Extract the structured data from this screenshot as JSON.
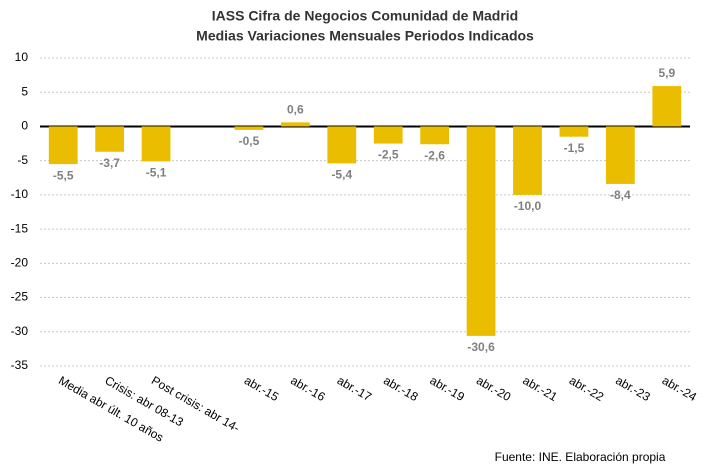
{
  "chart_data": {
    "type": "bar",
    "title": [
      "IASS Cifra de Negocios Comunidad de Madrid",
      "Medias Variaciones Mensuales Periodos Indicados"
    ],
    "categories": [
      "Media abr últ. 10 años",
      "Crisis: abr 08-13",
      "Post crisis: abr 14-",
      null,
      "abr.-15",
      "abr.-16",
      "abr.-17",
      "abr.-18",
      "abr.-19",
      "abr.-20",
      "abr.-21",
      "abr.-22",
      "abr.-23",
      "abr.-24"
    ],
    "values": [
      -5.5,
      -3.7,
      -5.1,
      null,
      -0.5,
      0.6,
      -5.4,
      -2.5,
      -2.6,
      -30.6,
      -10.0,
      -1.5,
      -8.4,
      5.9
    ],
    "value_labels": [
      "-5,5",
      "-3,7",
      "-5,1",
      null,
      "-0,5",
      "0,6",
      "-5,4",
      "-2,5",
      "-2,6",
      "-30,6",
      "-10,0",
      "-1,5",
      "-8,4",
      "5,9"
    ],
    "color": "#ebbd00",
    "ylim": [
      -35,
      10
    ],
    "yticks": [
      10,
      5,
      0,
      -5,
      -10,
      -15,
      -20,
      -25,
      -30,
      -35
    ],
    "grid": true,
    "source": "Fuente: INE. Elaboración propia"
  }
}
